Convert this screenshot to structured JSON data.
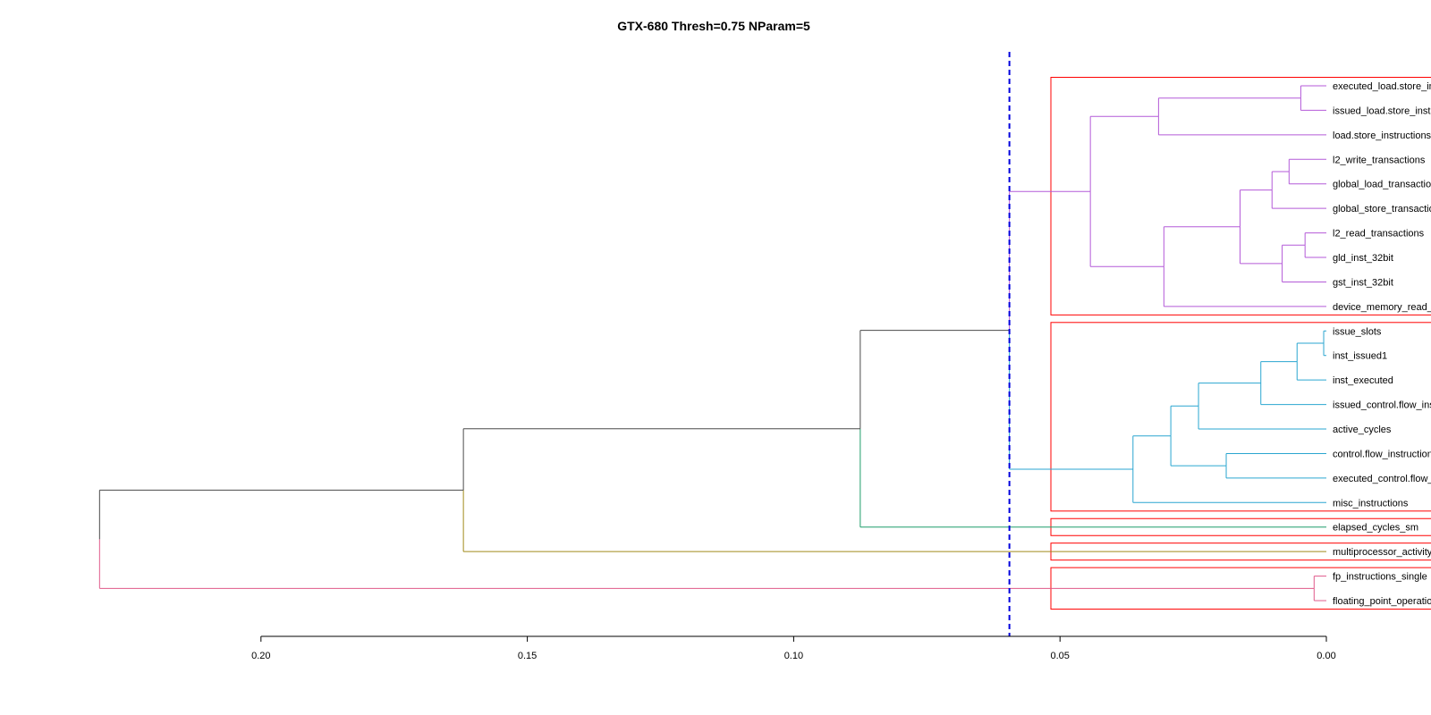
{
  "chart_data": {
    "type": "dendrogram",
    "title": "GTX-680 Thresh=0.75 NParam=5",
    "xlabel": "",
    "ylabel": "",
    "x_axis": {
      "ticks": [
        0.2,
        0.15,
        0.1,
        0.05,
        0.0
      ],
      "tick_labels": [
        "0.20",
        "0.15",
        "0.10",
        "0.05",
        "0.00"
      ],
      "direction": "reversed",
      "xlim": [
        0.2,
        0.0
      ]
    },
    "threshold": {
      "value": 0.0595,
      "color": "#0000dd",
      "style": "dashed"
    },
    "leaves": [
      "executed_load.store_instructions",
      "issued_load.store_instructions",
      "load.store_instructions",
      "l2_write_transactions",
      "global_load_transactions",
      "global_store_transactions",
      "l2_read_transactions",
      "gld_inst_32bit",
      "gst_inst_32bit",
      "device_memory_read_transactions",
      "issue_slots",
      "inst_issued1",
      "inst_executed",
      "issued_control.flow_instructions",
      "active_cycles",
      "control.flow_instructions",
      "executed_control.flow_instructions",
      "misc_instructions",
      "elapsed_cycles_sm",
      "multiprocessor_activity",
      "fp_instructions_single",
      "floating_point_operations"
    ],
    "merges": [
      {
        "id": "A1",
        "children": [
          "L0",
          "L1"
        ],
        "height": 0.0048,
        "color": "#b45ad8"
      },
      {
        "id": "A2",
        "children": [
          "A1",
          "L2"
        ],
        "height": 0.0315,
        "color": "#b45ad8"
      },
      {
        "id": "B1",
        "children": [
          "L3",
          "L4"
        ],
        "height": 0.007,
        "color": "#b45ad8"
      },
      {
        "id": "B2",
        "children": [
          "B1",
          "L5"
        ],
        "height": 0.0102,
        "color": "#b45ad8"
      },
      {
        "id": "C1",
        "children": [
          "L6",
          "L7"
        ],
        "height": 0.004,
        "color": "#b45ad8"
      },
      {
        "id": "C2",
        "children": [
          "C1",
          "L8"
        ],
        "height": 0.0083,
        "color": "#b45ad8"
      },
      {
        "id": "D1",
        "children": [
          "B2",
          "C2"
        ],
        "height": 0.0162,
        "color": "#b45ad8"
      },
      {
        "id": "D2",
        "children": [
          "D1",
          "L9"
        ],
        "height": 0.0305,
        "color": "#b45ad8"
      },
      {
        "id": "P",
        "children": [
          "A2",
          "D2"
        ],
        "height": 0.0443,
        "color": "#b45ad8"
      },
      {
        "id": "E1",
        "children": [
          "L10",
          "L11"
        ],
        "height": 0.0005,
        "color": "#2aa6d0"
      },
      {
        "id": "E2",
        "children": [
          "E1",
          "L12"
        ],
        "height": 0.0055,
        "color": "#2aa6d0"
      },
      {
        "id": "E3",
        "children": [
          "E2",
          "L13"
        ],
        "height": 0.0123,
        "color": "#2aa6d0"
      },
      {
        "id": "E4",
        "children": [
          "E3",
          "L14"
        ],
        "height": 0.024,
        "color": "#2aa6d0"
      },
      {
        "id": "F1",
        "children": [
          "L15",
          "L16"
        ],
        "height": 0.0188,
        "color": "#2aa6d0"
      },
      {
        "id": "G1",
        "children": [
          "E4",
          "F1"
        ],
        "height": 0.0292,
        "color": "#2aa6d0"
      },
      {
        "id": "Q",
        "children": [
          "G1",
          "L17"
        ],
        "height": 0.0363,
        "color": "#2aa6d0"
      },
      {
        "id": "R",
        "children": [
          "P",
          "Q"
        ],
        "height": 0.0595,
        "color": "#4a4a4a"
      },
      {
        "id": "S",
        "children": [
          "R",
          "L18"
        ],
        "height": 0.0875,
        "color": "#4a4a4a"
      },
      {
        "id": "T",
        "children": [
          "S",
          "L19"
        ],
        "height": 0.162,
        "color": "#4a4a4a"
      },
      {
        "id": "U1",
        "children": [
          "L20",
          "L21"
        ],
        "height": 0.0023,
        "color": "#e05a8a"
      },
      {
        "id": "ROOT",
        "children": [
          "T",
          "U1"
        ],
        "height": 0.2303,
        "color": "#4a4a4a"
      }
    ],
    "branch_colors": {
      "R_to_P": "#b45ad8",
      "R_to_Q": "#2aa6d0",
      "S_to_L18": "#1e9e6a",
      "T_to_L19": "#a08a1a",
      "ROOT_to_U1": "#e05a8a"
    },
    "clusters": [
      {
        "from": 0,
        "to": 9,
        "color": "#ff0000"
      },
      {
        "from": 10,
        "to": 17,
        "color": "#ff0000"
      },
      {
        "from": 18,
        "to": 18,
        "color": "#ff0000"
      },
      {
        "from": 19,
        "to": 19,
        "color": "#ff0000"
      },
      {
        "from": 20,
        "to": 21,
        "color": "#ff0000"
      }
    ],
    "legend": "none",
    "grid": false
  }
}
